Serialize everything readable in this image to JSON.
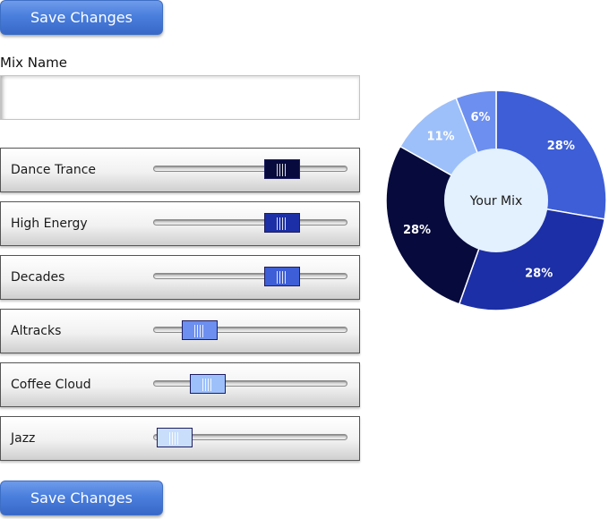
{
  "toolbar": {
    "save_label": "Save Changes"
  },
  "mix_name": {
    "label": "Mix Name",
    "value": "",
    "placeholder": ""
  },
  "sliders": [
    {
      "label": "Dance Trance",
      "value": 0.7,
      "color": "#060a3c"
    },
    {
      "label": "High Energy",
      "value": 0.7,
      "color": "#1c2fa6"
    },
    {
      "label": "Decades",
      "value": 0.7,
      "color": "#3d5ed7"
    },
    {
      "label": "Altracks",
      "value": 0.18,
      "color": "#6c8ff0"
    },
    {
      "label": "Coffee Cloud",
      "value": 0.23,
      "color": "#9dc0fa"
    },
    {
      "label": "Jazz",
      "value": 0.02,
      "color": "#c8defb"
    }
  ],
  "chart_data": {
    "type": "pie",
    "donut": true,
    "center_label": "Your Mix",
    "slices": [
      {
        "label": "28%",
        "value": 28,
        "color": "#3d5ed7",
        "text_color": "#ffffff"
      },
      {
        "label": "28%",
        "value": 28,
        "color": "#1c2fa6",
        "text_color": "#ffffff"
      },
      {
        "label": "28%",
        "value": 28,
        "color": "#060a3c",
        "text_color": "#ffffff"
      },
      {
        "label": "11%",
        "value": 11,
        "color": "#9dc0fa",
        "text_color": "#ffffff"
      },
      {
        "label": "6%",
        "value": 6,
        "color": "#6c8ff0",
        "text_color": "#ffffff"
      }
    ]
  }
}
